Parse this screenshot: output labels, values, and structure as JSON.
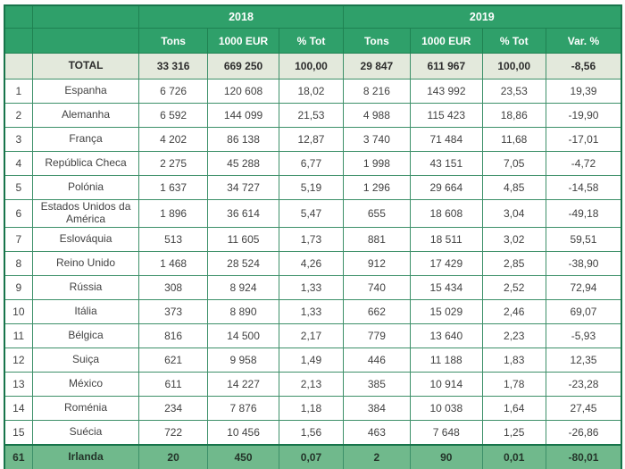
{
  "chart_data": {
    "type": "table",
    "title": "",
    "year_groups": [
      {
        "label": "2018",
        "colspan": 3
      },
      {
        "label": "2019",
        "colspan": 4
      }
    ],
    "columns": [
      "Tons",
      "1000 EUR",
      "% Tot",
      "Tons",
      "1000 EUR",
      "% Tot",
      "Var. %"
    ],
    "rows": [
      {
        "rank": "",
        "country": "TOTAL",
        "style": "total",
        "values": [
          "33 316",
          "669 250",
          "100,00",
          "29 847",
          "611 967",
          "100,00",
          "-8,56"
        ]
      },
      {
        "rank": "1",
        "country": "Espanha",
        "style": "",
        "values": [
          "6 726",
          "120 608",
          "18,02",
          "8 216",
          "143 992",
          "23,53",
          "19,39"
        ]
      },
      {
        "rank": "2",
        "country": "Alemanha",
        "style": "",
        "values": [
          "6 592",
          "144 099",
          "21,53",
          "4 988",
          "115 423",
          "18,86",
          "-19,90"
        ]
      },
      {
        "rank": "3",
        "country": "França",
        "style": "",
        "values": [
          "4 202",
          "86 138",
          "12,87",
          "3 740",
          "71 484",
          "11,68",
          "-17,01"
        ]
      },
      {
        "rank": "4",
        "country": "República Checa",
        "style": "",
        "values": [
          "2 275",
          "45 288",
          "6,77",
          "1 998",
          "43 151",
          "7,05",
          "-4,72"
        ]
      },
      {
        "rank": "5",
        "country": "Polónia",
        "style": "",
        "values": [
          "1 637",
          "34 727",
          "5,19",
          "1 296",
          "29 664",
          "4,85",
          "-14,58"
        ]
      },
      {
        "rank": "6",
        "country": "Estados Unidos da América",
        "style": "",
        "values": [
          "1 896",
          "36 614",
          "5,47",
          "655",
          "18 608",
          "3,04",
          "-49,18"
        ]
      },
      {
        "rank": "7",
        "country": "Eslováquia",
        "style": "",
        "values": [
          "513",
          "11 605",
          "1,73",
          "881",
          "18 511",
          "3,02",
          "59,51"
        ]
      },
      {
        "rank": "8",
        "country": "Reino Unido",
        "style": "",
        "values": [
          "1 468",
          "28 524",
          "4,26",
          "912",
          "17 429",
          "2,85",
          "-38,90"
        ]
      },
      {
        "rank": "9",
        "country": "Rússia",
        "style": "",
        "values": [
          "308",
          "8 924",
          "1,33",
          "740",
          "15 434",
          "2,52",
          "72,94"
        ]
      },
      {
        "rank": "10",
        "country": "Itália",
        "style": "",
        "values": [
          "373",
          "8 890",
          "1,33",
          "662",
          "15 029",
          "2,46",
          "69,07"
        ]
      },
      {
        "rank": "11",
        "country": "Bélgica",
        "style": "",
        "values": [
          "816",
          "14 500",
          "2,17",
          "779",
          "13 640",
          "2,23",
          "-5,93"
        ]
      },
      {
        "rank": "12",
        "country": "Suiça",
        "style": "",
        "values": [
          "621",
          "9 958",
          "1,49",
          "446",
          "11 188",
          "1,83",
          "12,35"
        ]
      },
      {
        "rank": "13",
        "country": "México",
        "style": "",
        "values": [
          "611",
          "14 227",
          "2,13",
          "385",
          "10 914",
          "1,78",
          "-23,28"
        ]
      },
      {
        "rank": "14",
        "country": "Roménia",
        "style": "",
        "values": [
          "234",
          "7 876",
          "1,18",
          "384",
          "10 038",
          "1,64",
          "27,45"
        ]
      },
      {
        "rank": "15",
        "country": "Suécia",
        "style": "",
        "values": [
          "722",
          "10 456",
          "1,56",
          "463",
          "7 648",
          "1,25",
          "-26,86"
        ]
      },
      {
        "rank": "61",
        "country": "Irlanda",
        "style": "highlight",
        "values": [
          "20",
          "450",
          "0,07",
          "2",
          "90",
          "0,01",
          "-80,01"
        ]
      }
    ],
    "colors": {
      "header_green": "#2fa06a",
      "total_row_bg": "#e3e9dc",
      "highlight_row_bg": "#70b98c",
      "grid_border": "#3d9069",
      "outer_border": "#17744a",
      "body_text": "#424242"
    }
  }
}
